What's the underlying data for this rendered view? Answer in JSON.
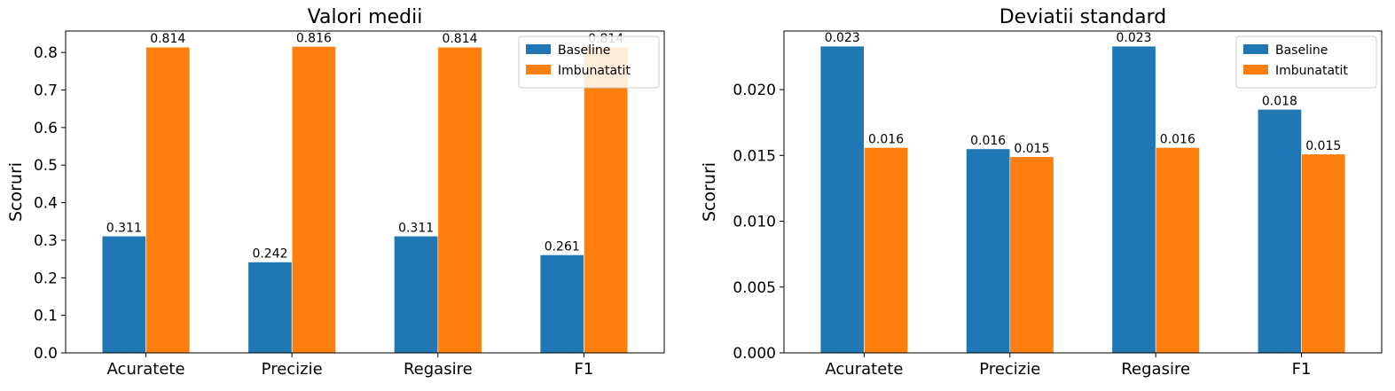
{
  "chart_data": [
    {
      "type": "bar",
      "title": "Valori medii",
      "xlabel": "",
      "ylabel": "Scoruri",
      "categories": [
        "Acuratete",
        "Precizie",
        "Regasire",
        "F1"
      ],
      "series": [
        {
          "name": "Baseline",
          "color": "#1f77b4",
          "values": [
            0.311,
            0.242,
            0.311,
            0.261
          ]
        },
        {
          "name": "Imbunatatit",
          "color": "#ff7f0e",
          "values": [
            0.814,
            0.816,
            0.814,
            0.814
          ]
        }
      ],
      "data_labels": [
        [
          "0.311",
          "0.242",
          "0.311",
          "0.261"
        ],
        [
          "0.814",
          "0.816",
          "0.814",
          "0.814"
        ]
      ],
      "ylim": [
        0,
        0.857
      ],
      "yticks": [
        0.0,
        0.1,
        0.2,
        0.3,
        0.4,
        0.5,
        0.6,
        0.7,
        0.8
      ],
      "ytick_labels": [
        "0.0",
        "0.1",
        "0.2",
        "0.3",
        "0.4",
        "0.5",
        "0.6",
        "0.7",
        "0.8"
      ],
      "legend": "top-right",
      "grid": false
    },
    {
      "type": "bar",
      "title": "Deviatii standard",
      "xlabel": "",
      "ylabel": "Scoruri",
      "categories": [
        "Acuratete",
        "Precizie",
        "Regasire",
        "F1"
      ],
      "series": [
        {
          "name": "Baseline",
          "color": "#1f77b4",
          "values": [
            0.0233,
            0.0155,
            0.0233,
            0.0185
          ]
        },
        {
          "name": "Imbunatatit",
          "color": "#ff7f0e",
          "values": [
            0.0156,
            0.0149,
            0.0156,
            0.0151
          ]
        }
      ],
      "data_labels": [
        [
          "0.023",
          "0.016",
          "0.023",
          "0.018"
        ],
        [
          "0.016",
          "0.015",
          "0.016",
          "0.015"
        ]
      ],
      "ylim": [
        0,
        0.02445
      ],
      "yticks": [
        0.0,
        0.005,
        0.01,
        0.015,
        0.02
      ],
      "ytick_labels": [
        "0.000",
        "0.005",
        "0.010",
        "0.015",
        "0.020"
      ],
      "legend": "top-right",
      "grid": false
    }
  ]
}
